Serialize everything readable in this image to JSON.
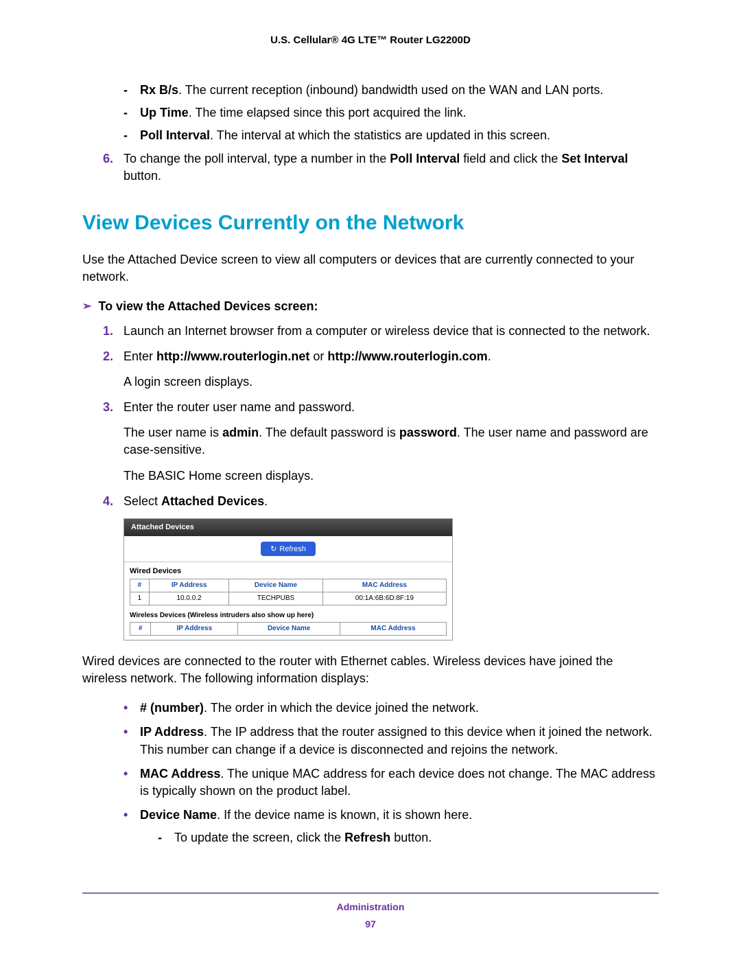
{
  "header": {
    "title": "U.S. Cellular® 4G LTE™ Router LG2200D"
  },
  "dash_items": [
    {
      "bold": "Rx B/s",
      "rest": ". The current reception (inbound) bandwidth used on the WAN and LAN ports."
    },
    {
      "bold": "Up Time",
      "rest": ". The time elapsed since this port acquired the link."
    },
    {
      "bold": "Poll Interval",
      "rest": ". The interval at which the statistics are updated in this screen."
    }
  ],
  "step6": {
    "num": "6.",
    "pre": "To change the poll interval, type a number in the ",
    "b1": "Poll Interval",
    "mid": " field and click the ",
    "b2": "Set Interval",
    "post": " button."
  },
  "section_heading": "View Devices Currently on the Network",
  "intro": "Use the Attached Device screen to view all computers or devices that are currently connected to your network.",
  "procedure_title": "To view the Attached Devices screen:",
  "steps": [
    {
      "num": "1.",
      "text": "Launch an Internet browser from a computer or wireless device that is connected to the network."
    },
    {
      "num": "2.",
      "pre": "Enter ",
      "b1": "http://www.routerlogin.net",
      "mid": " or ",
      "b2": "http://www.routerlogin.com",
      "post": ".",
      "sub": "A login screen displays."
    },
    {
      "num": "3.",
      "text": "Enter the router user name and password.",
      "sub1_pre": "The user name is ",
      "sub1_b1": "admin",
      "sub1_mid": ". The default password is ",
      "sub1_b2": "password",
      "sub1_post": ". The user name and password are case-sensitive.",
      "sub2": "The BASIC Home screen displays."
    },
    {
      "num": "4.",
      "pre": "Select ",
      "b1": "Attached Devices",
      "post": "."
    }
  ],
  "screenshot": {
    "title": "Attached Devices",
    "refresh": "Refresh",
    "wired_label": "Wired Devices",
    "columns": [
      "#",
      "IP Address",
      "Device Name",
      "MAC Address"
    ],
    "row": {
      "idx": "1",
      "ip": "10.0.0.2",
      "name": "TECHPUBS",
      "mac": "00:1A:6B:6D:8F:19"
    },
    "wireless_label": "Wireless Devices (Wireless intruders also show up here)"
  },
  "after_shot": "Wired devices are connected to the router with Ethernet cables. Wireless devices have joined the wireless network. The following information displays:",
  "bullets": [
    {
      "bold": "# (number)",
      "rest": ". The order in which the device joined the network."
    },
    {
      "bold": "IP Address",
      "rest": ". The IP address that the router assigned to this device when it joined the network. This number can change if a device is disconnected and rejoins the network."
    },
    {
      "bold": "MAC Address",
      "rest": ". The unique MAC address for each device does not change. The MAC address is typically shown on the product label."
    },
    {
      "bold": "Device Name",
      "rest": ". If the device name is known, it is shown here.",
      "inner": {
        "pre": "To update the screen, click the ",
        "b": "Refresh",
        "post": " button."
      }
    }
  ],
  "footer": {
    "label": "Administration",
    "page": "97"
  }
}
